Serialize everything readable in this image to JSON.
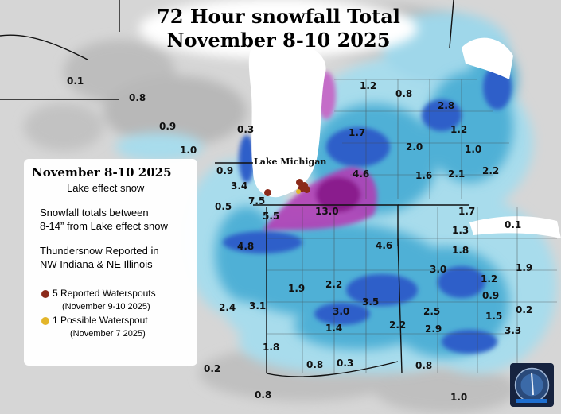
{
  "title": {
    "line1": "72 Hour snowfall Total",
    "line2": "November 8-10 2025"
  },
  "lake_label": "Lake Michigan",
  "panel": {
    "heading": "November 8-10 2025",
    "subheading": "Lake effect snow",
    "totals_text_1": "Snowfall totals between",
    "totals_text_2": "8-14” from Lake effect snow",
    "thunder_text_1": "Thundersnow Reported in",
    "thunder_text_2": "NW Indiana & NE Illinois",
    "legend": [
      {
        "label": "5 Reported Waterspouts",
        "date": "(November 9-10 2025)",
        "color": "#8b2a1a"
      },
      {
        "label": "1 Possible Waterspout",
        "date": "(November 7 2025)",
        "color": "#e3b52a"
      }
    ]
  },
  "snow_values": [
    "0.1",
    "0.8",
    "0.9",
    "1.0",
    "0.3",
    "0.9",
    "3.4",
    "7.5",
    "0.5",
    "5.5",
    "4.8",
    "13.0",
    "4.6",
    "4.6",
    "1.7",
    "1.2",
    "0.8",
    "2.8",
    "1.2",
    "2.0",
    "1.0",
    "1.6",
    "2.1",
    "2.2",
    "1.7",
    "1.3",
    "0.1",
    "1.8",
    "3.0",
    "1.2",
    "1.9",
    "0.9",
    "0.2",
    "1.5",
    "3.3",
    "1.9",
    "2.2",
    "3.5",
    "3.0",
    "1.4",
    "2.2",
    "2.5",
    "2.9",
    "2.4",
    "3.1",
    "1.8",
    "0.2",
    "0.8",
    "0.3",
    "0.8",
    "0.8",
    "1.0"
  ],
  "colors": {
    "background": "#d9d9d9",
    "snow_light": "#a8dcec",
    "snow_mid": "#4fb0d6",
    "snow_blue": "#2d5fc9",
    "snow_heavy": "#b03fb5",
    "lake": "#ffffff"
  },
  "logo_icon": "snow-station-logo-icon"
}
